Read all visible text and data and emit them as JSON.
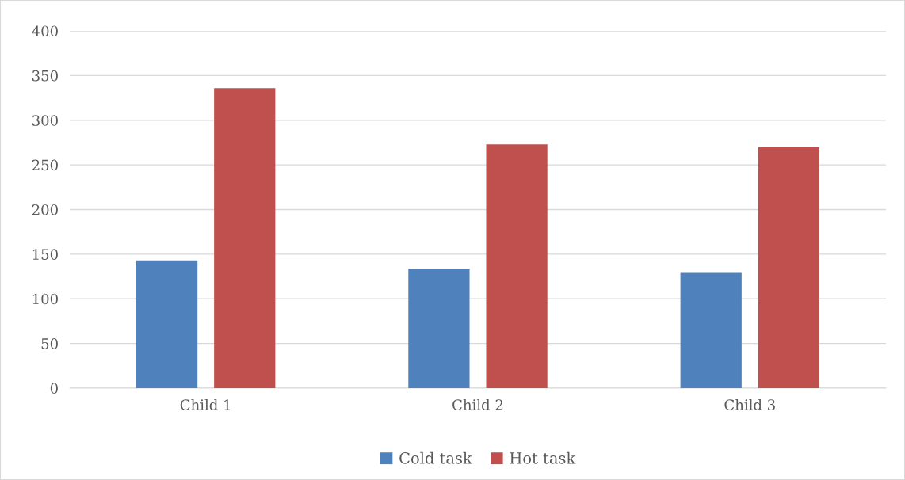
{
  "chart_data": {
    "type": "bar",
    "categories": [
      "Child 1",
      "Child 2",
      "Child 3"
    ],
    "series": [
      {
        "name": "Cold task",
        "color": "#4f81bd",
        "values": [
          143,
          134,
          129
        ]
      },
      {
        "name": "Hot task",
        "color": "#c0504d",
        "values": [
          336,
          273,
          270
        ]
      }
    ],
    "ylim": [
      0,
      400
    ],
    "yticks": [
      0,
      50,
      100,
      150,
      200,
      250,
      300,
      350,
      400
    ],
    "grid": "y",
    "legend": "bottom"
  }
}
